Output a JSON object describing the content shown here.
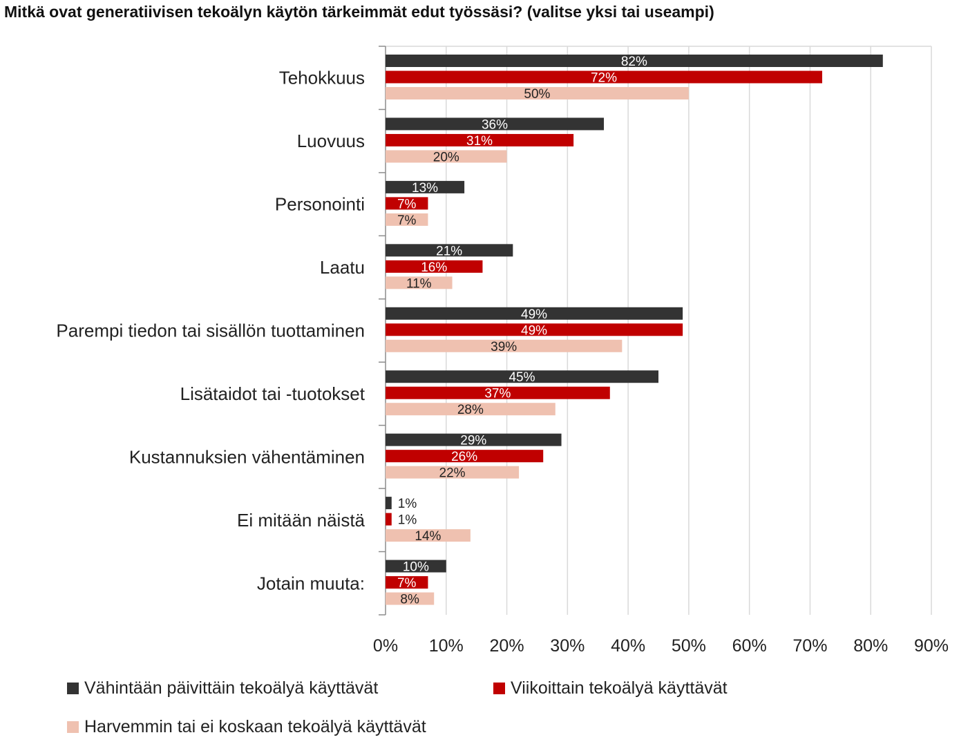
{
  "chart_data": {
    "type": "bar",
    "orientation": "horizontal",
    "title": "Mitkä ovat generatiivisen tekoälyn käytön tärkeimmät edut työssäsi? (valitse yksi tai useampi)",
    "categories": [
      "Tehokkuus",
      "Luovuus",
      "Personointi",
      "Laatu",
      "Parempi tiedon tai sisällön tuottaminen",
      "Lisätaidot tai -tuotokset",
      "Kustannuksien vähentäminen",
      "Ei mitään näistä",
      "Jotain muuta:"
    ],
    "series": [
      {
        "name": "Vähintään päivittäin tekoälyä käyttävät",
        "color": "#333333",
        "label_color": "#ffffff",
        "values": [
          82,
          36,
          13,
          21,
          49,
          45,
          29,
          1,
          10
        ]
      },
      {
        "name": "Viikoittain tekoälyä käyttävät",
        "color": "#c00000",
        "label_color": "#ffffff",
        "values": [
          72,
          31,
          7,
          16,
          49,
          37,
          26,
          1,
          7
        ]
      },
      {
        "name": "Harvemmin tai ei koskaan tekoälyä käyttävät",
        "color": "#efc1b0",
        "label_color": "#222222",
        "values": [
          50,
          20,
          7,
          11,
          39,
          28,
          22,
          14,
          8
        ]
      }
    ],
    "xlim": [
      0,
      90
    ],
    "xticks": [
      "0%",
      "10%",
      "20%",
      "30%",
      "40%",
      "50%",
      "60%",
      "70%",
      "80%",
      "90%"
    ],
    "grid": "vertical",
    "legend_position": "bottom",
    "value_suffix": "%"
  }
}
